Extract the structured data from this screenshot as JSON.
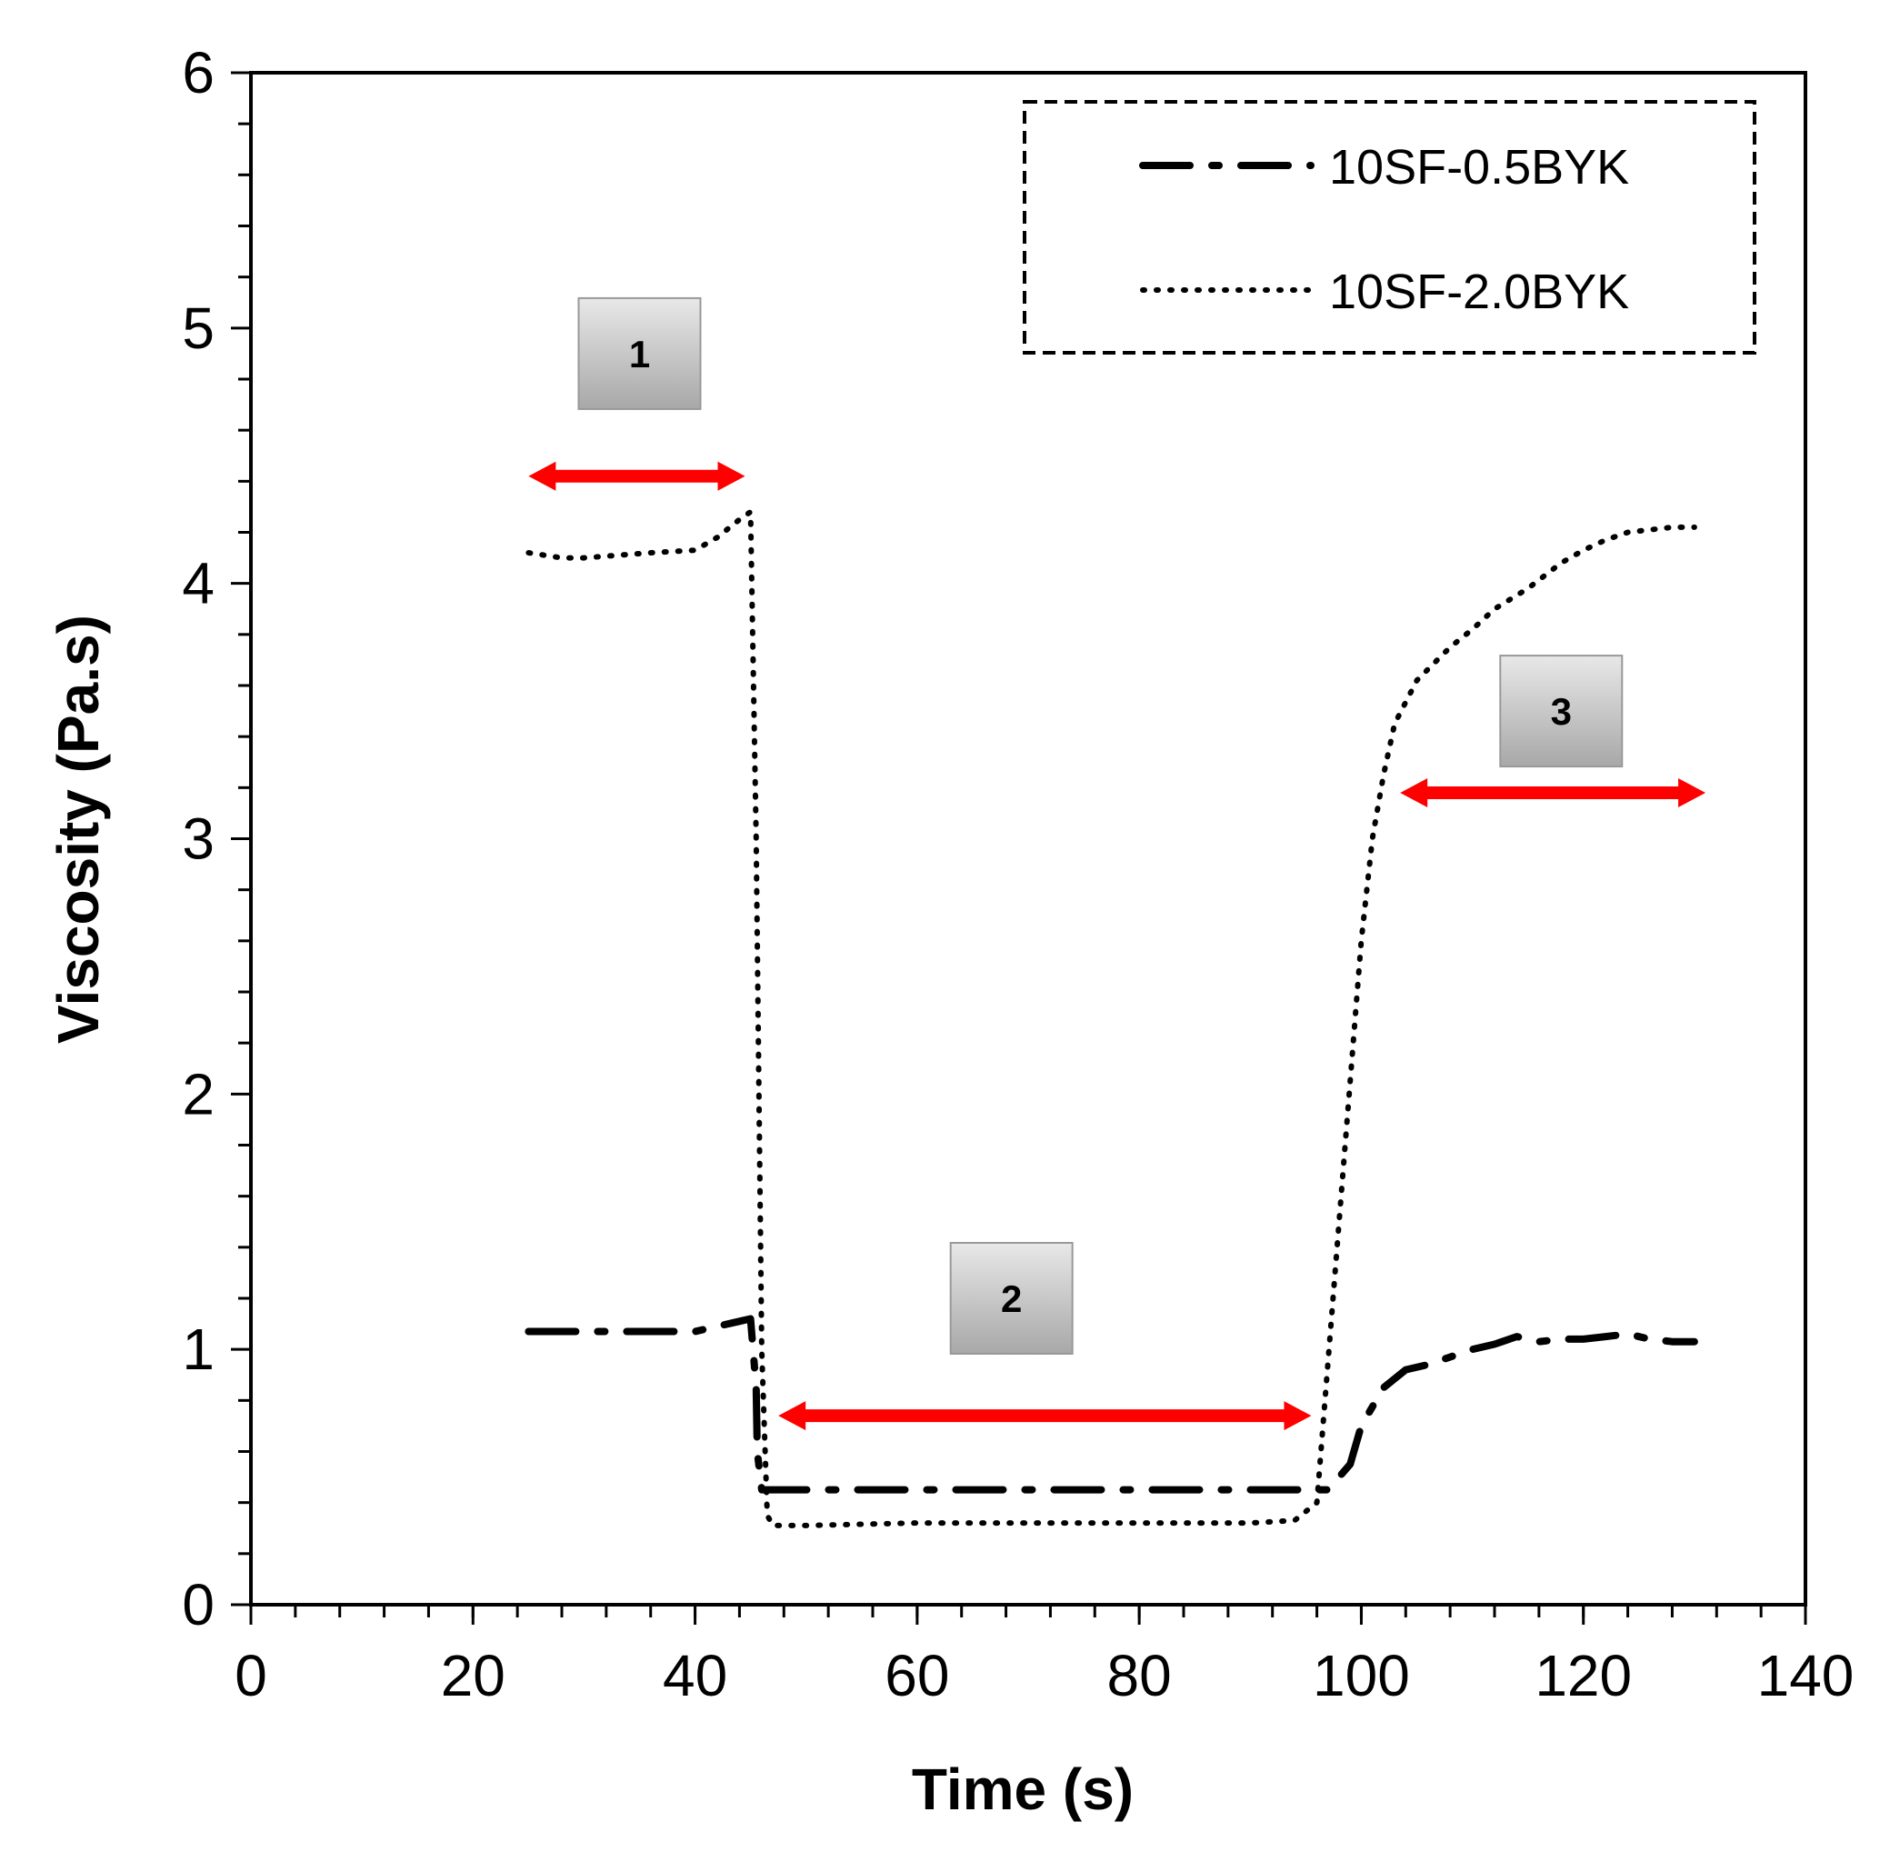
{
  "chart_data": {
    "type": "line",
    "title": "",
    "xlabel": "Time (s)",
    "ylabel": "Viscosity (Pa.s)",
    "xlim": [
      0,
      140
    ],
    "ylim": [
      0,
      6
    ],
    "xticks": [
      0,
      20,
      40,
      60,
      80,
      100,
      120,
      140
    ],
    "yticks": [
      0,
      1,
      2,
      3,
      4,
      5,
      6
    ],
    "x_minor_step": 4,
    "y_minor_step": 0.2,
    "grid": false,
    "legend_position": "top-right",
    "series": [
      {
        "name": "10SF-0.5BYK",
        "style": "dash-dot",
        "color": "#000000",
        "x": [
          25,
          30,
          35,
          40,
          42,
          44,
          45,
          45.5,
          45.6,
          46,
          50,
          60,
          70,
          80,
          90,
          95,
          97,
          99,
          100,
          102,
          104,
          106,
          108,
          110,
          112,
          114,
          116,
          118,
          120,
          122,
          124,
          126,
          128,
          130
        ],
        "y": [
          1.07,
          1.07,
          1.07,
          1.07,
          1.09,
          1.11,
          1.12,
          0.85,
          0.6,
          0.45,
          0.45,
          0.45,
          0.45,
          0.45,
          0.45,
          0.45,
          0.45,
          0.55,
          0.7,
          0.85,
          0.92,
          0.94,
          0.97,
          1.0,
          1.02,
          1.05,
          1.03,
          1.04,
          1.04,
          1.05,
          1.06,
          1.04,
          1.03,
          1.03
        ]
      },
      {
        "name": "10SF-2.0BYK",
        "style": "dotted",
        "color": "#000000",
        "x": [
          25,
          28,
          30,
          33,
          36,
          40,
          42,
          44,
          45,
          45.5,
          46,
          46.5,
          47,
          50,
          60,
          70,
          80,
          90,
          94,
          96,
          98,
          100,
          101,
          102,
          103,
          105,
          108,
          110,
          112,
          115,
          118,
          120,
          122,
          124,
          126,
          128,
          130
        ],
        "y": [
          4.12,
          4.1,
          4.1,
          4.11,
          4.12,
          4.13,
          4.18,
          4.25,
          4.28,
          3.0,
          1.0,
          0.35,
          0.31,
          0.31,
          0.32,
          0.32,
          0.32,
          0.32,
          0.33,
          0.4,
          1.5,
          2.6,
          3.0,
          3.25,
          3.45,
          3.62,
          3.75,
          3.82,
          3.9,
          3.98,
          4.08,
          4.13,
          4.17,
          4.2,
          4.21,
          4.22,
          4.22
        ]
      }
    ],
    "annotations": [
      {
        "label": "1",
        "box_x": 35,
        "box_y": 4.9,
        "arrow_from": 25,
        "arrow_to": 44.5,
        "arrow_y": 4.42
      },
      {
        "label": "2",
        "box_x": 68.5,
        "box_y": 1.2,
        "arrow_from": 47.5,
        "arrow_to": 95.5,
        "arrow_y": 0.74
      },
      {
        "label": "3",
        "box_x": 118,
        "box_y": 3.5,
        "arrow_from": 103.5,
        "arrow_to": 131,
        "arrow_y": 3.18
      }
    ]
  }
}
